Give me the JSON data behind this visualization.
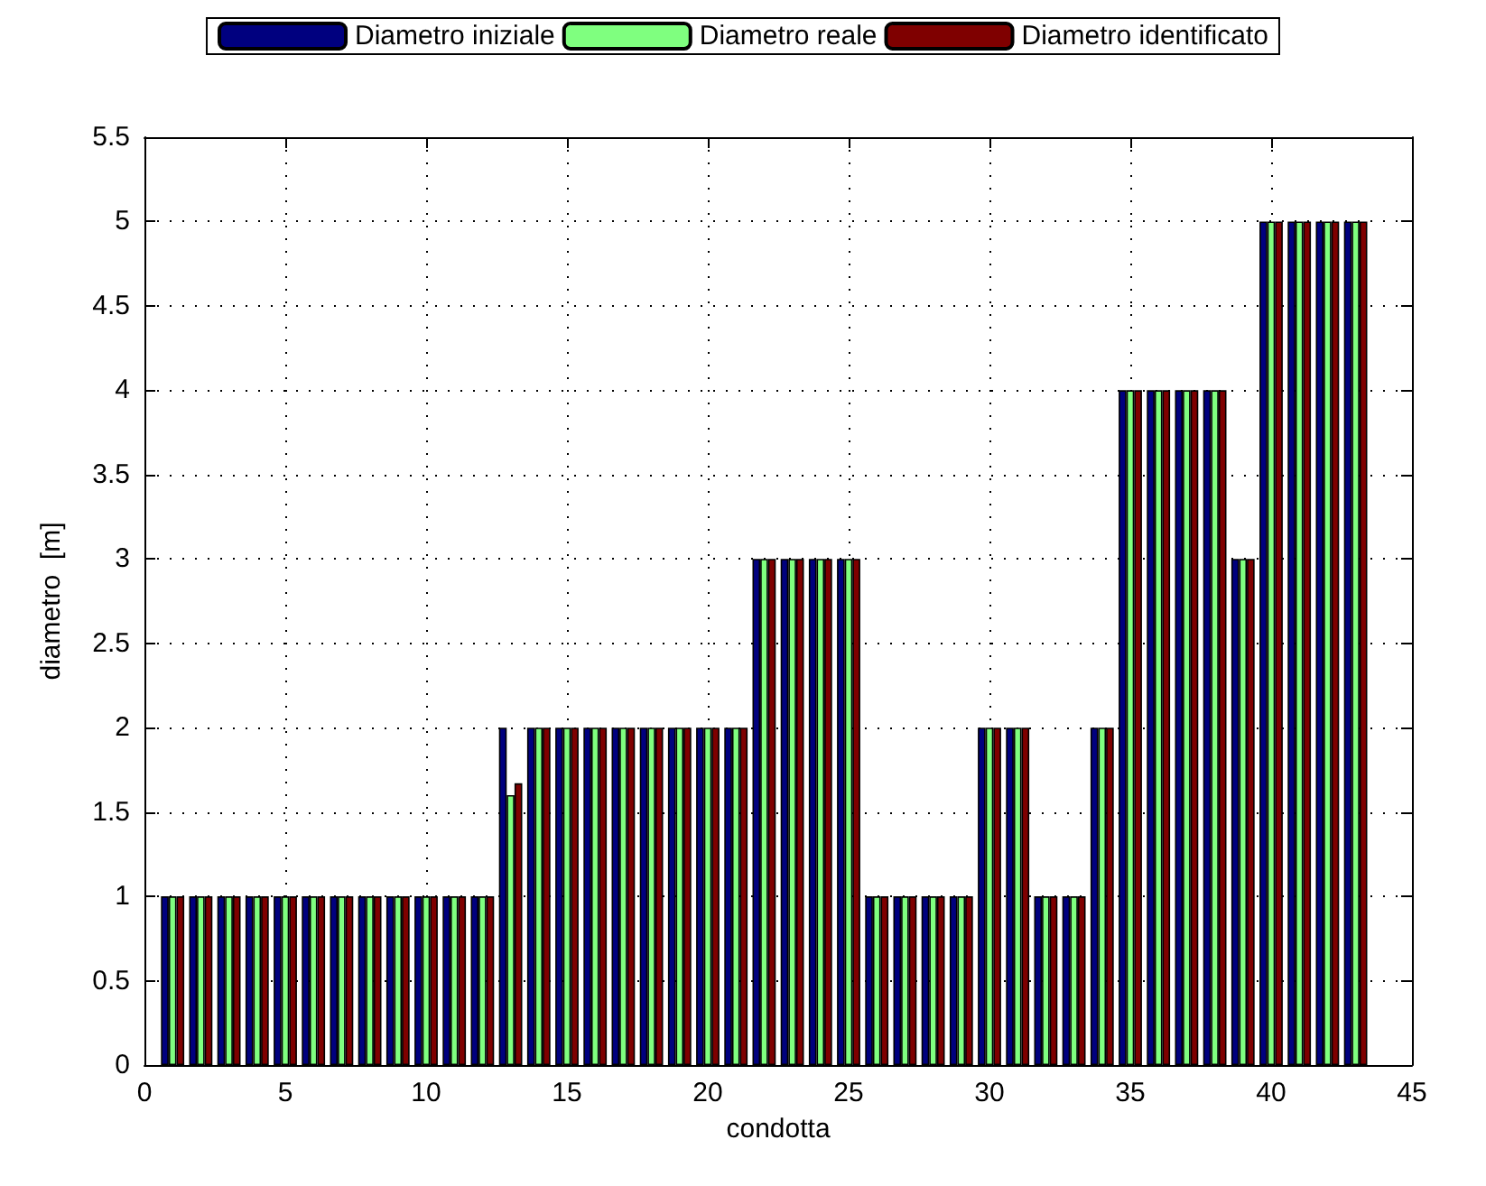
{
  "chart_data": {
    "type": "bar",
    "xlabel": "condotta",
    "ylabel": "diametro  [m]",
    "x": [
      1,
      2,
      3,
      4,
      5,
      6,
      7,
      8,
      9,
      10,
      11,
      12,
      13,
      14,
      15,
      16,
      17,
      18,
      19,
      20,
      21,
      22,
      23,
      24,
      25,
      26,
      27,
      28,
      29,
      30,
      31,
      32,
      33,
      34,
      35,
      36,
      37,
      38,
      39,
      40,
      41,
      42,
      43
    ],
    "series": [
      {
        "name": "Diametro iniziale",
        "color": "#00007f",
        "values": [
          1,
          1,
          1,
          1,
          1,
          1,
          1,
          1,
          1,
          1,
          1,
          1,
          2,
          2,
          2,
          2,
          2,
          2,
          2,
          2,
          2,
          3,
          3,
          3,
          3,
          1,
          1,
          1,
          1,
          2,
          2,
          1,
          1,
          2,
          4,
          4,
          4,
          4,
          3,
          5,
          5,
          5,
          5
        ]
      },
      {
        "name": "Diametro reale",
        "color": "#7fff7f",
        "values": [
          1,
          1,
          1,
          1,
          1,
          1,
          1,
          1,
          1,
          1,
          1,
          1,
          1.6,
          2,
          2,
          2,
          2,
          2,
          2,
          2,
          2,
          3,
          3,
          3,
          3,
          1,
          1,
          1,
          1,
          2,
          2,
          1,
          1,
          2,
          4,
          4,
          4,
          4,
          3,
          5,
          5,
          5,
          5
        ]
      },
      {
        "name": "Diametro identificato",
        "color": "#7f0000",
        "values": [
          1,
          1,
          1,
          1,
          1,
          1,
          1,
          1,
          1,
          1,
          1,
          1,
          1.67,
          2,
          2,
          2,
          2,
          2,
          2,
          2,
          2,
          3,
          3,
          3,
          3,
          1,
          1,
          1,
          1,
          2,
          2,
          1,
          1,
          2,
          4,
          4,
          4,
          4,
          3,
          5,
          5,
          5,
          5
        ]
      }
    ],
    "xlim": [
      0,
      45
    ],
    "xticks": [
      0,
      5,
      10,
      15,
      20,
      25,
      30,
      35,
      40,
      45
    ],
    "ylim": [
      0,
      5.5
    ],
    "yticks": [
      0,
      0.5,
      1,
      1.5,
      2,
      2.5,
      3,
      3.5,
      4,
      4.5,
      5,
      5.5
    ],
    "grid": true,
    "legend": "top"
  }
}
